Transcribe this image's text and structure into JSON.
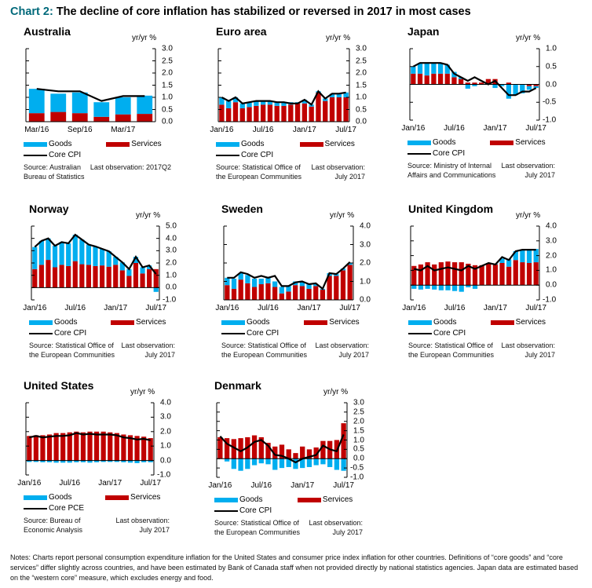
{
  "header": {
    "label": "Chart 2:",
    "title": "The decline of core inflation has stabilized or reversed in 2017 in most cases"
  },
  "colors": {
    "goods": "#00aeef",
    "services": "#c00000",
    "core": "#000000",
    "label": "#00697a"
  },
  "legend": {
    "goods": "Goods",
    "services": "Services"
  },
  "units": "yr/yr  %",
  "notes": "Notes: Charts report personal consumption expenditure inflation for the United States and consumer price index inflation for other countries. Definitions of “core goods” and “core services” differ slightly across countries, and have been estimated by Bank of Canada staff when not provided directly by national statistics agencies. Japan data are estimated based on the “western core” measure, which excludes energy and food.",
  "chart_data": [
    {
      "type": "bar",
      "title": "Australia",
      "core_label": "Core CPI",
      "ylim": [
        0,
        3
      ],
      "yticks": [
        "3.0",
        "2.5",
        "2.0",
        "1.5",
        "1.0",
        "0.5",
        "0.0"
      ],
      "ytick_values": [
        3,
        2.5,
        2,
        1.5,
        1,
        0.5,
        0
      ],
      "xlabels": [
        {
          "i": 0,
          "t": "Mar/16"
        },
        {
          "i": 2,
          "t": "Sep/16"
        },
        {
          "i": 4,
          "t": "Mar/17"
        }
      ],
      "services": [
        0.35,
        0.4,
        0.35,
        0.2,
        0.3,
        0.32
      ],
      "goods": [
        1.0,
        0.75,
        0.85,
        0.6,
        0.7,
        0.75
      ],
      "core": [
        1.35,
        1.25,
        1.25,
        0.85,
        1.05,
        1.05
      ],
      "source": [
        "Source: Australian",
        "Bureau of Statistics"
      ],
      "last_obs": [
        "Last observation: 2017Q2"
      ]
    },
    {
      "type": "bar",
      "title": "Euro area",
      "core_label": "Core CPI",
      "ylim": [
        0,
        3
      ],
      "yticks": [
        "3.0",
        "2.5",
        "2.0",
        "1.5",
        "1.0",
        "0.5",
        "0.0"
      ],
      "ytick_values": [
        3,
        2.5,
        2,
        1.5,
        1,
        0.5,
        0
      ],
      "xlabels": [
        {
          "i": 0,
          "t": "Jan/16"
        },
        {
          "i": 6,
          "t": "Jul/16"
        },
        {
          "i": 12,
          "t": "Jan/17"
        },
        {
          "i": 18,
          "t": "Jul/17"
        }
      ],
      "services": [
        0.7,
        0.55,
        0.8,
        0.55,
        0.6,
        0.65,
        0.7,
        0.7,
        0.65,
        0.65,
        0.7,
        0.75,
        0.75,
        0.62,
        1.2,
        0.85,
        1.0,
        1.0,
        1.0
      ],
      "goods": [
        0.3,
        0.3,
        0.2,
        0.2,
        0.2,
        0.2,
        0.15,
        0.15,
        0.15,
        0.15,
        0.1,
        0.05,
        0.15,
        0.08,
        0.05,
        0.1,
        0.15,
        0.15,
        0.2
      ],
      "core": [
        1.0,
        0.85,
        1.0,
        0.75,
        0.8,
        0.85,
        0.85,
        0.85,
        0.8,
        0.8,
        0.75,
        0.75,
        0.9,
        0.7,
        1.25,
        0.95,
        1.15,
        1.15,
        1.2
      ],
      "source": [
        "Source: Statistical Office of",
        "the European Communities"
      ],
      "last_obs": [
        "Last observation:",
        "July 2017"
      ]
    },
    {
      "type": "bar",
      "title": "Japan",
      "core_label": "Core CPI",
      "ylim": [
        -1,
        1
      ],
      "yticks": [
        "1.0",
        "0.5",
        "0.0",
        "-0.5",
        "-1.0"
      ],
      "ytick_values": [
        1,
        0.5,
        0,
        -0.5,
        -1
      ],
      "xlabels": [
        {
          "i": 0,
          "t": "Jan/16"
        },
        {
          "i": 6,
          "t": "Jul/16"
        },
        {
          "i": 12,
          "t": "Jan/17"
        },
        {
          "i": 18,
          "t": "Jul/17"
        }
      ],
      "services": [
        0.3,
        0.3,
        0.25,
        0.3,
        0.3,
        0.3,
        0.2,
        0.15,
        0.05,
        0.05,
        0.05,
        0.15,
        0.15,
        0.0,
        0.05,
        0.0,
        0.0,
        -0.05,
        -0.05
      ],
      "goods": [
        0.2,
        0.3,
        0.35,
        0.3,
        0.3,
        0.25,
        0.15,
        0.05,
        -0.12,
        -0.05,
        0.0,
        0.0,
        -0.1,
        -0.05,
        -0.4,
        -0.3,
        -0.25,
        -0.1,
        -0.05
      ],
      "core": [
        0.5,
        0.6,
        0.6,
        0.6,
        0.6,
        0.55,
        0.3,
        0.2,
        0.1,
        0.2,
        0.1,
        0.0,
        0.1,
        -0.1,
        -0.3,
        -0.3,
        -0.2,
        -0.2,
        -0.1
      ],
      "source": [
        "Source: Ministry of Internal",
        "Affairs and Communications"
      ],
      "last_obs": [
        "Last observation:",
        "July 2017"
      ]
    },
    {
      "type": "bar",
      "title": "Norway",
      "core_label": "Core CPI",
      "ylim": [
        -1,
        5
      ],
      "yticks": [
        "5.0",
        "4.0",
        "3.0",
        "2.0",
        "1.0",
        "0.0",
        "-1.0"
      ],
      "ytick_values": [
        5,
        4,
        3,
        2,
        1,
        0,
        -1
      ],
      "xlabels": [
        {
          "i": 0,
          "t": "Jan/16"
        },
        {
          "i": 6,
          "t": "Jul/16"
        },
        {
          "i": 12,
          "t": "Jan/17"
        },
        {
          "i": 18,
          "t": "Jul/17"
        }
      ],
      "services": [
        1.5,
        1.85,
        2.25,
        1.65,
        1.85,
        1.75,
        2.15,
        1.9,
        1.85,
        1.75,
        1.8,
        1.7,
        1.85,
        1.4,
        0.95,
        2.0,
        1.15,
        1.5,
        1.5
      ],
      "goods": [
        1.8,
        1.95,
        1.75,
        1.75,
        1.85,
        1.85,
        2.15,
        2.0,
        1.65,
        1.6,
        1.35,
        1.25,
        0.65,
        0.65,
        0.55,
        0.5,
        0.5,
        0.3,
        -0.35
      ],
      "core": [
        3.3,
        3.8,
        4.0,
        3.4,
        3.7,
        3.6,
        4.3,
        3.9,
        3.5,
        3.35,
        3.15,
        2.95,
        2.5,
        2.05,
        1.5,
        2.5,
        1.65,
        1.8,
        1.1
      ],
      "source": [
        "Source: Statistical Office of",
        "the European Communities"
      ],
      "last_obs": [
        "Last observation:",
        "July 2017"
      ]
    },
    {
      "type": "bar",
      "title": "Sweden",
      "core_label": "Core CPI",
      "ylim": [
        0,
        4
      ],
      "yticks": [
        "4.0",
        "3.0",
        "2.0",
        "1.0",
        "0.0"
      ],
      "ytick_values": [
        4,
        3,
        2,
        1,
        0
      ],
      "xlabels": [
        {
          "i": 0,
          "t": "Jan/16"
        },
        {
          "i": 6,
          "t": "Jul/16"
        },
        {
          "i": 12,
          "t": "Jan/17"
        },
        {
          "i": 18,
          "t": "Jul/17"
        }
      ],
      "services": [
        0.8,
        0.6,
        1.1,
        0.9,
        0.7,
        0.85,
        0.9,
        0.7,
        0.35,
        0.45,
        0.8,
        0.75,
        0.6,
        0.75,
        0.55,
        1.3,
        1.3,
        1.6,
        1.9
      ],
      "goods": [
        0.4,
        0.55,
        0.35,
        0.45,
        0.45,
        0.3,
        0.35,
        0.3,
        0.35,
        0.3,
        0.2,
        0.25,
        0.25,
        0.1,
        0.05,
        0.15,
        0.1,
        0.1,
        0.1
      ],
      "core": [
        1.2,
        1.2,
        1.5,
        1.4,
        1.2,
        1.3,
        1.2,
        1.3,
        0.75,
        0.75,
        0.95,
        1.0,
        0.85,
        0.9,
        0.6,
        1.45,
        1.4,
        1.7,
        2.05
      ],
      "source": [
        "Source: Statistical Office of",
        "the European Communities"
      ],
      "last_obs": [
        "Last observation:",
        "July 2017"
      ]
    },
    {
      "type": "bar",
      "title": "United Kingdom",
      "core_label": "Core CPI",
      "ylim": [
        -1,
        4
      ],
      "yticks": [
        "4.0",
        "3.0",
        "2.0",
        "1.0",
        "0.0",
        "-1.0"
      ],
      "ytick_values": [
        4,
        3,
        2,
        1,
        0,
        -1
      ],
      "xlabels": [
        {
          "i": 0,
          "t": "Jan/16"
        },
        {
          "i": 6,
          "t": "Jul/16"
        },
        {
          "i": 12,
          "t": "Jan/17"
        },
        {
          "i": 18,
          "t": "Jul/17"
        }
      ],
      "services": [
        1.3,
        1.4,
        1.55,
        1.4,
        1.55,
        1.6,
        1.55,
        1.55,
        1.45,
        1.35,
        1.35,
        1.45,
        1.4,
        1.5,
        1.25,
        1.7,
        1.55,
        1.5,
        1.55
      ],
      "goods": [
        -0.25,
        -0.3,
        -0.25,
        -0.3,
        -0.35,
        -0.35,
        -0.4,
        -0.45,
        -0.15,
        -0.25,
        0.0,
        0.05,
        0.05,
        0.3,
        0.5,
        0.6,
        0.85,
        0.85,
        0.9
      ],
      "core": [
        1.1,
        1.0,
        1.3,
        1.0,
        1.1,
        1.2,
        1.1,
        1.0,
        1.3,
        1.1,
        1.3,
        1.5,
        1.4,
        1.9,
        1.7,
        2.3,
        2.4,
        2.4,
        2.4
      ],
      "source": [
        "Source: Statistical Office of",
        "the European Communities"
      ],
      "last_obs": [
        "Last observation:",
        "July 2017"
      ]
    },
    {
      "type": "bar",
      "title": "United States",
      "core_label": "Core PCE",
      "ylim": [
        -1,
        4
      ],
      "yticks": [
        "4.0",
        "3.0",
        "2.0",
        "1.0",
        "0.0",
        "-1.0"
      ],
      "ytick_values": [
        4,
        3,
        2,
        1,
        0,
        -1
      ],
      "xlabels": [
        {
          "i": 0,
          "t": "Jan/16"
        },
        {
          "i": 6,
          "t": "Jul/16"
        },
        {
          "i": 12,
          "t": "Jan/17"
        },
        {
          "i": 18,
          "t": "Jul/17"
        }
      ],
      "services": [
        1.7,
        1.75,
        1.75,
        1.8,
        1.9,
        1.9,
        1.95,
        2.0,
        1.95,
        2.0,
        2.0,
        2.0,
        1.95,
        1.9,
        1.8,
        1.75,
        1.7,
        1.65,
        1.55
      ],
      "goods": [
        -0.1,
        -0.1,
        -0.12,
        -0.12,
        -0.15,
        -0.15,
        -0.15,
        -0.12,
        -0.12,
        -0.15,
        -0.12,
        -0.1,
        -0.1,
        -0.1,
        -0.12,
        -0.15,
        -0.18,
        -0.12,
        -0.12
      ],
      "core": [
        1.6,
        1.7,
        1.6,
        1.65,
        1.7,
        1.7,
        1.75,
        1.9,
        1.8,
        1.85,
        1.8,
        1.8,
        1.8,
        1.75,
        1.6,
        1.55,
        1.45,
        1.5,
        1.4
      ],
      "source": [
        "Source: Bureau of",
        "Economic Analysis"
      ],
      "last_obs": [
        "Last observation:",
        "July 2017"
      ]
    },
    {
      "type": "bar",
      "title": "Denmark",
      "core_label": "Core CPI",
      "ylim": [
        -1,
        3
      ],
      "yticks": [
        "3.0",
        "2.5",
        "2.0",
        "1.5",
        "1.0",
        "0.5",
        "0.0",
        "-0.5",
        "-1.0"
      ],
      "ytick_values": [
        3,
        2.5,
        2,
        1.5,
        1,
        0.5,
        0,
        -0.5,
        -1
      ],
      "xlabels": [
        {
          "i": 0,
          "t": "Jan/16"
        },
        {
          "i": 6,
          "t": "Jul/16"
        },
        {
          "i": 12,
          "t": "Jan/17"
        },
        {
          "i": 18,
          "t": "Jul/17"
        }
      ],
      "services": [
        1.15,
        1.1,
        1.05,
        1.1,
        1.15,
        1.25,
        1.15,
        0.85,
        0.65,
        0.75,
        0.5,
        0.3,
        0.65,
        0.5,
        0.6,
        0.95,
        0.95,
        1.0,
        1.9
      ],
      "goods": [
        0.0,
        -0.15,
        -0.55,
        -0.65,
        -0.55,
        -0.35,
        -0.25,
        -0.3,
        -0.6,
        -0.5,
        -0.45,
        -0.55,
        -0.5,
        -0.45,
        -0.35,
        -0.3,
        -0.45,
        -0.6,
        -0.65
      ],
      "core": [
        1.2,
        0.8,
        0.6,
        0.4,
        0.6,
        0.9,
        1.0,
        0.7,
        0.2,
        0.15,
        0.0,
        -0.2,
        0.0,
        0.1,
        0.2,
        0.7,
        0.5,
        0.4,
        1.3
      ],
      "source": [
        "Source: Statistical Office of",
        "the European Communities"
      ],
      "last_obs": [
        "Last observation:",
        "July 2017"
      ]
    }
  ]
}
